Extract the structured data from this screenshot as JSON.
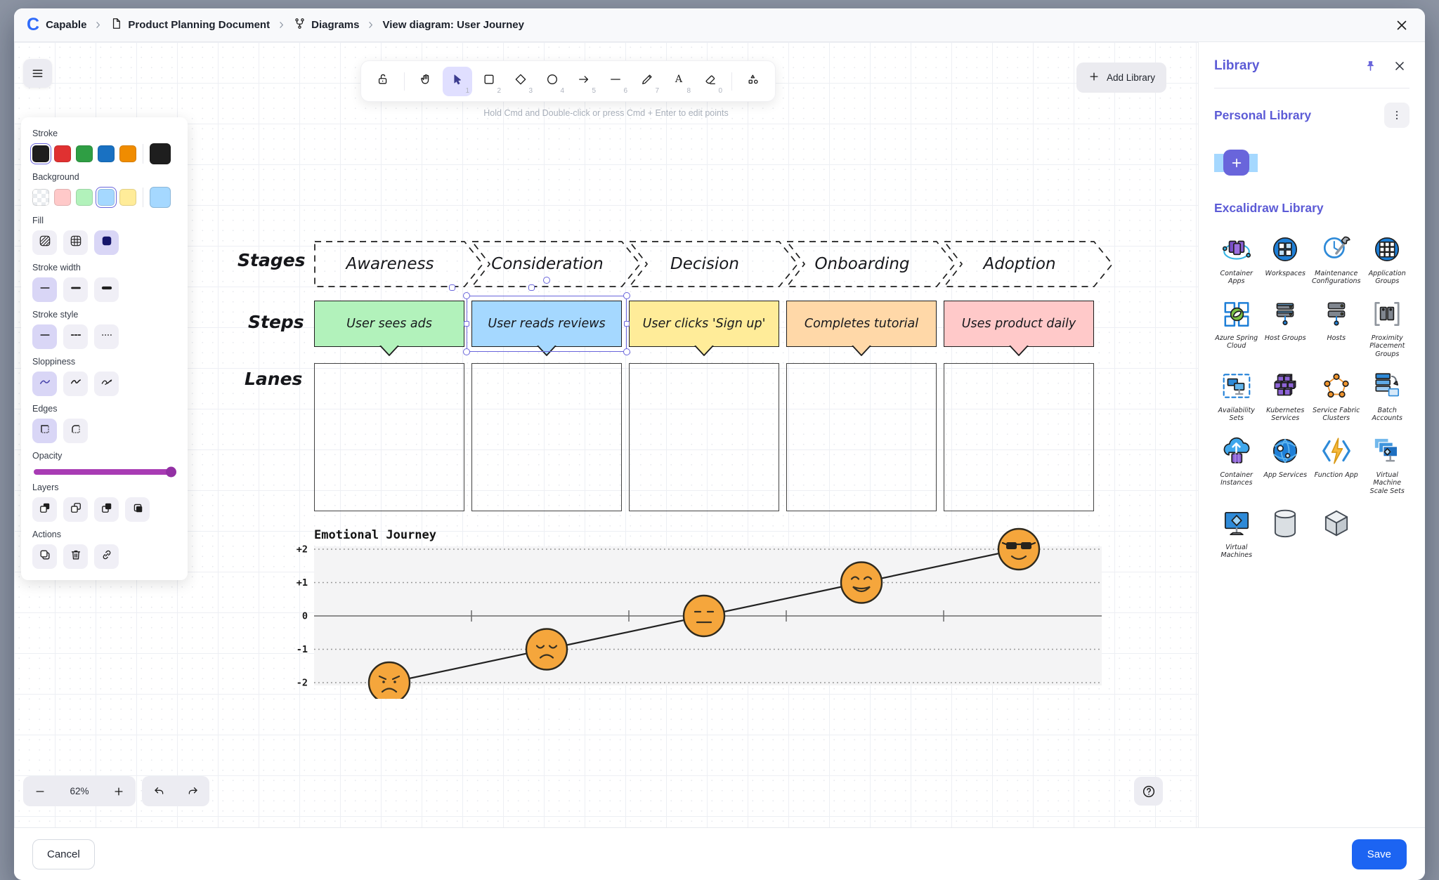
{
  "app": {
    "logo_letter": "C"
  },
  "breadcrumb": {
    "items": [
      {
        "label": "Capable",
        "icon": "capable-logo"
      },
      {
        "label": "Product Planning Document",
        "icon": "document-icon"
      },
      {
        "label": "Diagrams",
        "icon": "diagram-icon"
      },
      {
        "label": "View diagram: User Journey",
        "icon": ""
      }
    ]
  },
  "toolbar": {
    "hint": "Hold Cmd and Double-click or press Cmd + Enter to edit points",
    "add_library_label": "Add Library",
    "tools": [
      {
        "id": "lock",
        "icon": "lock-icon",
        "shortcut": "",
        "active": false
      },
      {
        "id": "divider"
      },
      {
        "id": "hand",
        "icon": "hand-icon",
        "shortcut": "",
        "active": false
      },
      {
        "id": "selection",
        "icon": "selection-icon",
        "shortcut": "1",
        "active": true
      },
      {
        "id": "rectangle",
        "icon": "rectangle-icon",
        "shortcut": "2",
        "active": false
      },
      {
        "id": "diamond",
        "icon": "diamond-icon",
        "shortcut": "3",
        "active": false
      },
      {
        "id": "ellipse",
        "icon": "ellipse-icon",
        "shortcut": "4",
        "active": false
      },
      {
        "id": "arrow",
        "icon": "arrow-icon",
        "shortcut": "5",
        "active": false
      },
      {
        "id": "line",
        "icon": "line-icon",
        "shortcut": "6",
        "active": false
      },
      {
        "id": "draw",
        "icon": "draw-icon",
        "shortcut": "7",
        "active": false
      },
      {
        "id": "text",
        "icon": "text-icon",
        "shortcut": "8",
        "active": false
      },
      {
        "id": "eraser",
        "icon": "eraser-icon",
        "shortcut": "0",
        "active": false
      },
      {
        "id": "divider"
      },
      {
        "id": "shapes",
        "icon": "shapes-icon",
        "shortcut": "",
        "active": false
      }
    ]
  },
  "properties_panel": {
    "stroke": {
      "label": "Stroke",
      "colors": [
        "#1e1e1e",
        "#e03131",
        "#2f9e44",
        "#1971c2",
        "#f08c00"
      ],
      "selected_index": 0,
      "current": "#1e1e1e"
    },
    "background": {
      "label": "Background",
      "colors": [
        "transparent",
        "#ffc9c9",
        "#b2f2bb",
        "#a5d8ff",
        "#ffec99"
      ],
      "selected_index": 3,
      "current": "#a5d8ff"
    },
    "fill": {
      "label": "Fill",
      "options": [
        "hachure",
        "cross-hatch",
        "solid"
      ],
      "selected_index": 2
    },
    "stroke_width": {
      "label": "Stroke width",
      "options": [
        "thin",
        "bold",
        "extra bold"
      ],
      "selected_index": 0
    },
    "stroke_style": {
      "label": "Stroke style",
      "options": [
        "solid",
        "dashed",
        "dotted"
      ],
      "selected_index": 0
    },
    "sloppiness": {
      "label": "Sloppiness",
      "options": [
        "architect",
        "artist",
        "cartoonist"
      ],
      "selected_index": 0
    },
    "edges": {
      "label": "Edges",
      "options": [
        "sharp",
        "round"
      ],
      "selected_index": 0
    },
    "opacity": {
      "label": "Opacity",
      "value": 100
    },
    "layers": {
      "label": "Layers",
      "options": [
        "send-backward",
        "send-to-back",
        "bring-forward",
        "bring-to-front"
      ]
    },
    "actions": {
      "label": "Actions",
      "options": [
        "duplicate",
        "delete",
        "link"
      ]
    }
  },
  "canvas": {
    "row_labels": [
      "Stages",
      "Steps",
      "Lanes"
    ],
    "stages": [
      "Awareness",
      "Consideration",
      "Decision",
      "Onboarding",
      "Adoption"
    ],
    "steps": [
      {
        "label": "User sees ads",
        "fill": "#b2f2bb",
        "selected": false
      },
      {
        "label": "User reads reviews",
        "fill": "#a5d8ff",
        "selected": true
      },
      {
        "label": "User clicks 'Sign up'",
        "fill": "#ffec99",
        "selected": false
      },
      {
        "label": "Completes tutorial",
        "fill": "#ffd8a8",
        "selected": false
      },
      {
        "label": "Uses product daily",
        "fill": "#ffc9c9",
        "selected": false
      }
    ],
    "lanes_count": 5
  },
  "chart_data": {
    "type": "line",
    "title": "Emotional Journey",
    "categories": [
      "Awareness",
      "Consideration",
      "Decision",
      "Onboarding",
      "Adoption"
    ],
    "values": [
      -2,
      -1,
      0,
      1,
      2
    ],
    "point_markers": [
      "angry-face",
      "sad-face",
      "neutral-face",
      "happy-face",
      "cool-face"
    ],
    "marker_color": "#f5a63c",
    "ytick_labels": [
      "+2",
      "+1",
      "0",
      "-1",
      "-2"
    ],
    "ylim": [
      -2,
      2
    ],
    "grid": "dotted-horizontal",
    "baseline": 0
  },
  "library": {
    "title": "Library",
    "personal_title": "Personal Library",
    "excalidraw_title": "Excalidraw Library",
    "items": [
      {
        "label": "Container Apps",
        "icon": "container-apps-icon"
      },
      {
        "label": "Workspaces",
        "icon": "workspaces-icon"
      },
      {
        "label": "Maintenance Configurations",
        "icon": "maintenance-configurations-icon"
      },
      {
        "label": "Application Groups",
        "icon": "application-groups-icon"
      },
      {
        "label": "Azure Spring Cloud",
        "icon": "azure-spring-cloud-icon"
      },
      {
        "label": "Host Groups",
        "icon": "host-groups-icon"
      },
      {
        "label": "Hosts",
        "icon": "hosts-icon"
      },
      {
        "label": "Proximity Placement Groups",
        "icon": "proximity-placement-groups-icon"
      },
      {
        "label": "Availability Sets",
        "icon": "availability-sets-icon"
      },
      {
        "label": "Kubernetes Services",
        "icon": "kubernetes-services-icon"
      },
      {
        "label": "Service Fabric Clusters",
        "icon": "service-fabric-clusters-icon"
      },
      {
        "label": "Batch Accounts",
        "icon": "batch-accounts-icon"
      },
      {
        "label": "Container Instances",
        "icon": "container-instances-icon"
      },
      {
        "label": "App Services",
        "icon": "app-services-icon"
      },
      {
        "label": "Function App",
        "icon": "function-app-icon"
      },
      {
        "label": "Virtual Machine Scale Sets",
        "icon": "virtual-machine-scale-sets-icon"
      },
      {
        "label": "Virtual Machines",
        "icon": "virtual-machines-icon"
      },
      {
        "label": "",
        "icon": "cylinder-icon"
      },
      {
        "label": "",
        "icon": "cube-icon"
      }
    ]
  },
  "zoom_controls": {
    "value": "62%"
  },
  "footer": {
    "cancel_label": "Cancel",
    "save_label": "Save"
  },
  "colors": {
    "accent_purple": "#6965db",
    "save_blue": "#1c64f2",
    "logo_blue": "#2f6bfa",
    "selection": "#6965db",
    "backdrop": "#8d95a4",
    "opacity_slider": "#a83bb4"
  }
}
